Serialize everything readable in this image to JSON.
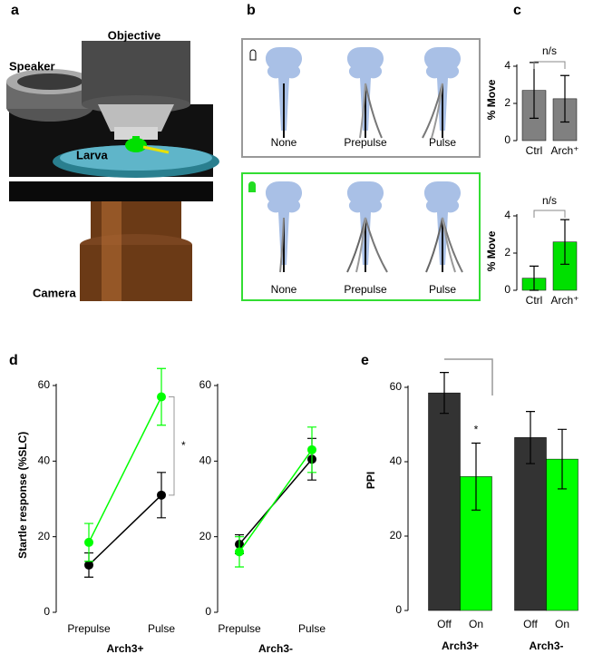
{
  "figure": {
    "panel_labels": [
      "a",
      "b",
      "c",
      "d",
      "e"
    ],
    "a_labels": {
      "objective": "Objective",
      "speaker": "Speaker",
      "larva": "Larva",
      "camera": "Camera"
    },
    "b_labels": [
      "None",
      "Prepulse",
      "Pulse"
    ]
  },
  "chart_data": [
    {
      "type": "bar",
      "ylabel": "% Move",
      "categories": [
        "Ctrl",
        "Arch⁺"
      ],
      "values": [
        2.7,
        2.25
      ],
      "errors": [
        1.5,
        1.25
      ],
      "color": "#808080",
      "ylim": [
        0,
        4.4
      ],
      "yticks": [
        0,
        2,
        4
      ],
      "annotation": "n/s"
    },
    {
      "type": "bar",
      "ylabel": "% Move",
      "categories": [
        "Ctrl",
        "Arch⁺"
      ],
      "values": [
        0.65,
        2.6
      ],
      "errors": [
        0.65,
        1.2
      ],
      "color": "#00e000",
      "ylim": [
        0,
        4.2
      ],
      "yticks": [
        0,
        2,
        4
      ],
      "annotation": "n/s"
    },
    {
      "type": "line",
      "ylabel": "Startle response (%SLC)",
      "xlabel": "Arch3+",
      "categories": [
        "Prepulse",
        "Pulse"
      ],
      "series": [
        {
          "color": "#000000",
          "values": [
            12.5,
            31
          ],
          "errors": [
            3.2,
            6
          ]
        },
        {
          "color": "#00ff00",
          "values": [
            18.5,
            57
          ],
          "errors": [
            5,
            7.5
          ]
        }
      ],
      "ylim": [
        0,
        62
      ],
      "yticks": [
        0,
        20,
        40,
        60
      ],
      "annotation": "*"
    },
    {
      "type": "line",
      "xlabel": "Arch3-",
      "categories": [
        "Prepulse",
        "Pulse"
      ],
      "series": [
        {
          "color": "#000000",
          "values": [
            18,
            40.5
          ],
          "errors": [
            2.5,
            5.5
          ]
        },
        {
          "color": "#00ff00",
          "values": [
            16,
            43
          ],
          "errors": [
            4,
            6
          ]
        }
      ],
      "ylim": [
        0,
        62
      ],
      "yticks": [
        0,
        20,
        40,
        60
      ]
    },
    {
      "type": "bar",
      "ylabel": "PPI",
      "categories": [
        "Arch3+",
        "Arch3-"
      ],
      "series": [
        {
          "name": "Off",
          "color": "#333333",
          "values": [
            58.5,
            46.5
          ],
          "errors": [
            5.5,
            7
          ]
        },
        {
          "name": "On",
          "color": "#00ff00",
          "values": [
            36,
            40.7
          ],
          "errors": [
            9,
            8
          ]
        }
      ],
      "ylim": [
        0,
        70
      ],
      "yticks": [
        0,
        20,
        40,
        60
      ],
      "annotation": "*"
    }
  ]
}
